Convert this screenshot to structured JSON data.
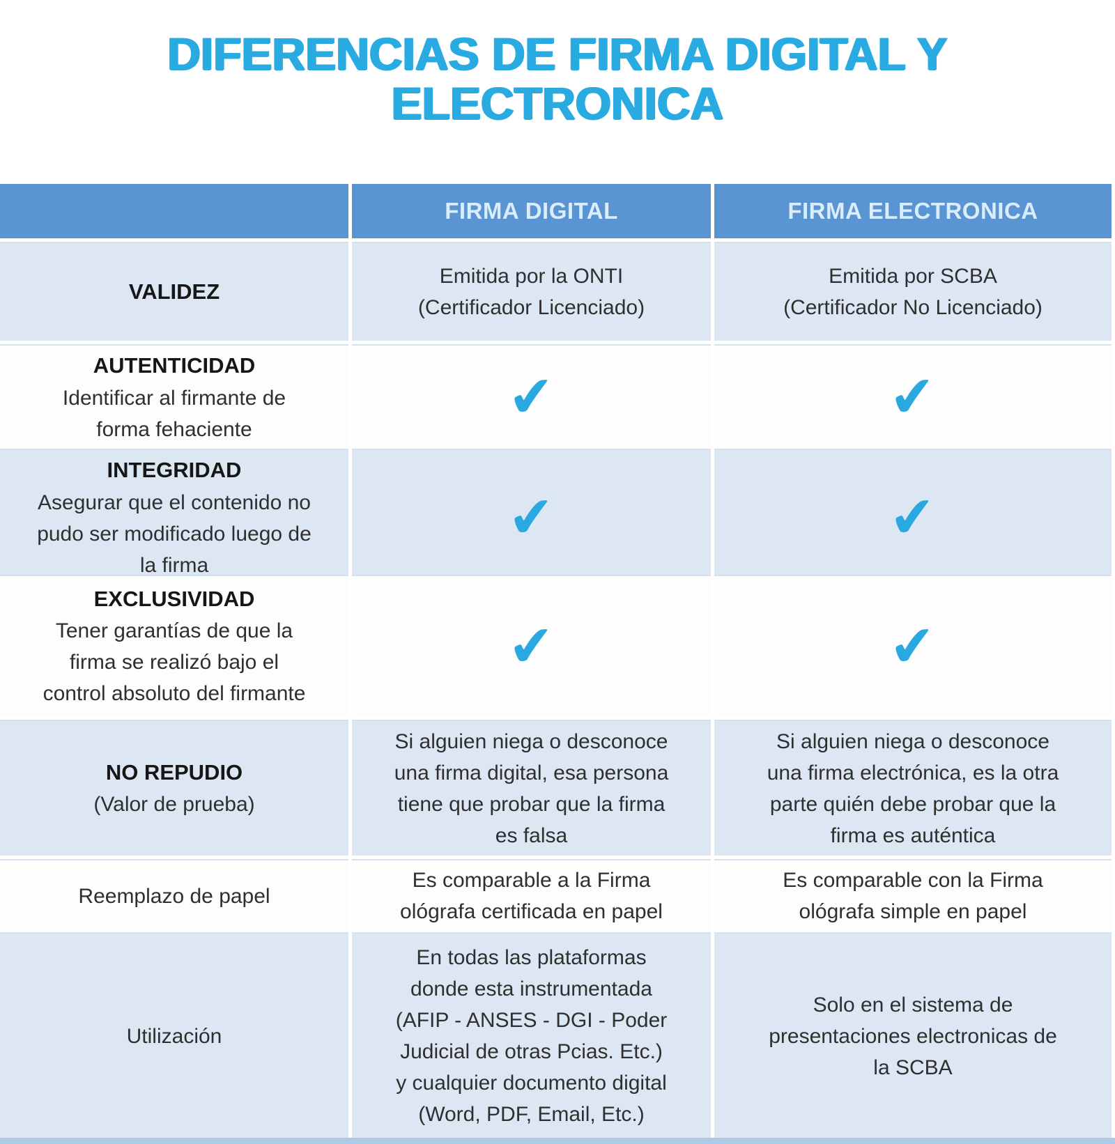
{
  "title": {
    "line1": "DIFERENCIAS DE FIRMA DIGITAL Y",
    "line2": "ELECTRONICA"
  },
  "colors": {
    "title_blue": "#29abe2",
    "header_bg": "#5b94d3",
    "header_text": "#daedfb",
    "row_light_blue": "#dde7f3",
    "row_white": "#fdfdfd",
    "check": "#29a9e0",
    "bottom_bar": "#aecbe6",
    "body_text": "#2f2f2f"
  },
  "table": {
    "check_glyph": "✔",
    "columns": {
      "label": "",
      "digital": "FIRMA DIGITAL",
      "electronica": "FIRMA ELECTRONICA"
    },
    "rows": {
      "validez": {
        "label_title": "VALIDEZ",
        "label_sub": "",
        "digital": "Emitida por la ONTI\n(Certificador Licenciado)",
        "electronica": "Emitida por SCBA\n(Certificador No Licenciado)"
      },
      "autenticidad": {
        "label_title": "AUTENTICIDAD",
        "label_sub": "Identificar al firmante de\nforma fehaciente"
      },
      "integridad": {
        "label_title": "INTEGRIDAD",
        "label_sub": "Asegurar que el contenido no\npudo ser modificado luego de\nla firma"
      },
      "exclusividad": {
        "label_title": "EXCLUSIVIDAD",
        "label_sub": "Tener garantías de que la\nfirma se realizó bajo el\ncontrol absoluto del firmante"
      },
      "no_repudio": {
        "label_title": "NO REPUDIO",
        "label_sub": "(Valor de prueba)",
        "digital": "Si alguien niega o desconoce\nuna firma digital, esa persona\ntiene que probar que la firma\nes falsa",
        "electronica": "Si alguien niega o desconoce\nuna firma electrónica, es la otra\nparte quién debe probar que la\nfirma es auténtica"
      },
      "reemplazo": {
        "label_title": "",
        "label_sub": "Reemplazo de papel",
        "digital": "Es comparable a la Firma\nológrafa certificada en papel",
        "electronica": "Es comparable con la Firma\nológrafa simple en papel"
      },
      "utilizacion": {
        "label_title": "",
        "label_sub": "Utilización",
        "digital": "En todas las plataformas\ndonde esta instrumentada\n(AFIP - ANSES - DGI - Poder\nJudicial de otras Pcias. Etc.)\ny cualquier documento digital\n(Word, PDF, Email, Etc.)",
        "electronica": "Solo en el sistema de\npresentaciones electronicas de\nla SCBA"
      }
    }
  }
}
